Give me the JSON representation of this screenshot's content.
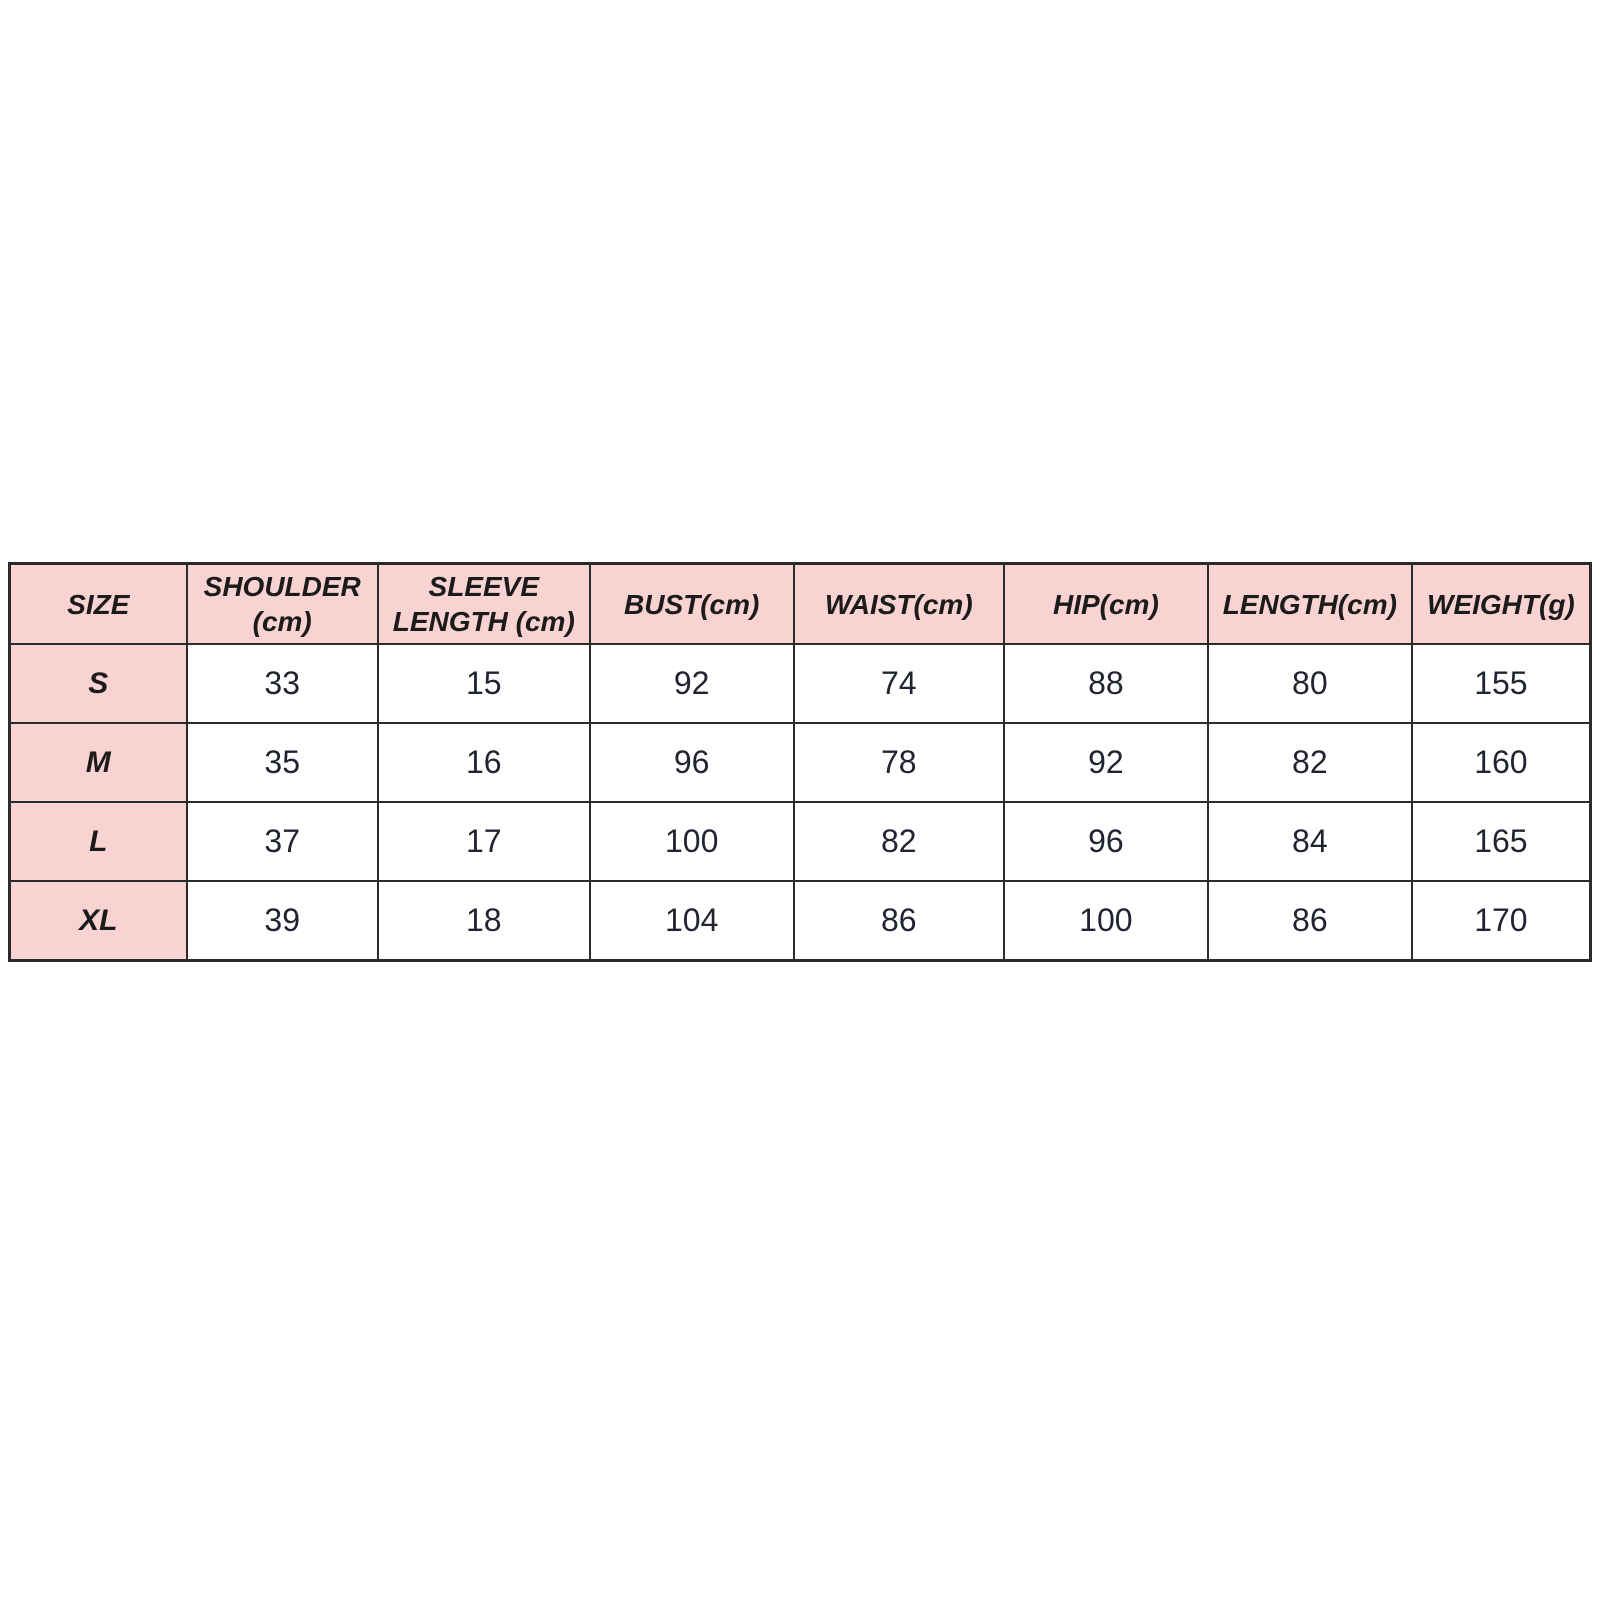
{
  "accent_colors": {
    "header_fill": "#f9d2d2",
    "row_label_fill": "#f9d2d2",
    "border": "#2b2b2b",
    "text": "#1b1b1b",
    "page_background": "#ffffff"
  },
  "chart_data": {
    "type": "table",
    "title": "",
    "columns": [
      "SIZE",
      "SHOULDER\n(cm)",
      "SLEEVE\nLENGTH (cm)",
      "BUST(cm)",
      "WAIST(cm)",
      "HIP(cm)",
      "LENGTH(cm)",
      "WEIGHT(g)"
    ],
    "rows": [
      {
        "size": "S",
        "values": [
          "33",
          "15",
          "92",
          "74",
          "88",
          "80",
          "155"
        ]
      },
      {
        "size": "M",
        "values": [
          "35",
          "16",
          "96",
          "78",
          "92",
          "82",
          "160"
        ]
      },
      {
        "size": "L",
        "values": [
          "37",
          "17",
          "100",
          "82",
          "96",
          "84",
          "165"
        ]
      },
      {
        "size": "XL",
        "values": [
          "39",
          "18",
          "104",
          "86",
          "100",
          "86",
          "170"
        ]
      }
    ],
    "layout_hints": {
      "header_background": "#f9d2d2",
      "first_column_background": "#f9d2d2",
      "grid": true,
      "column_width_percent": [
        11.2,
        12.1,
        13.4,
        12.9,
        13.3,
        12.9,
        12.9,
        11.3
      ]
    }
  }
}
